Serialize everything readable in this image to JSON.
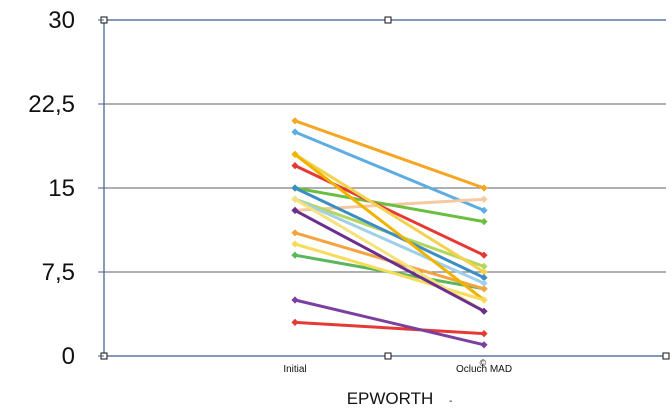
{
  "chart_data": {
    "type": "line",
    "xlabel": "EPWORTH",
    "xlabel_suffix": "-",
    "categories": [
      "Initial",
      "Ocluch MAD"
    ],
    "category_superscript": "©",
    "ylim": [
      0,
      30
    ],
    "yticks": [
      "0",
      "7,5",
      "15",
      "22,5",
      "30"
    ],
    "ytick_values": [
      0,
      7.5,
      15,
      22.5,
      30
    ],
    "grid": true,
    "legend": "none",
    "series": [
      {
        "color": "#F5A623",
        "values": [
          21,
          15
        ]
      },
      {
        "color": "#5DADE2",
        "values": [
          20,
          13
        ]
      },
      {
        "color": "#F7C9A0",
        "values": [
          13,
          14
        ]
      },
      {
        "color": "#6ABF40",
        "values": [
          15,
          12
        ]
      },
      {
        "color": "#E53935",
        "values": [
          17,
          9
        ]
      },
      {
        "color": "#B5D65C",
        "values": [
          14,
          8
        ]
      },
      {
        "color": "#F2D24E",
        "values": [
          18,
          7.5
        ]
      },
      {
        "color": "#3C8DC4",
        "values": [
          15,
          7
        ]
      },
      {
        "color": "#5AB65A",
        "values": [
          9,
          6
        ]
      },
      {
        "color": "#F4A340",
        "values": [
          11,
          6
        ]
      },
      {
        "color": "#9FD0E8",
        "values": [
          14,
          6.5
        ]
      },
      {
        "color": "#F0B400",
        "values": [
          18,
          5
        ]
      },
      {
        "color": "#F7DC5C",
        "values": [
          10,
          5
        ]
      },
      {
        "color": "#F5E27A",
        "values": [
          14,
          4
        ]
      },
      {
        "color": "#6A2E8E",
        "values": [
          13,
          4
        ]
      },
      {
        "color": "#E53935",
        "values": [
          3,
          2
        ]
      },
      {
        "color": "#7B3FA0",
        "values": [
          5,
          1
        ]
      }
    ]
  }
}
